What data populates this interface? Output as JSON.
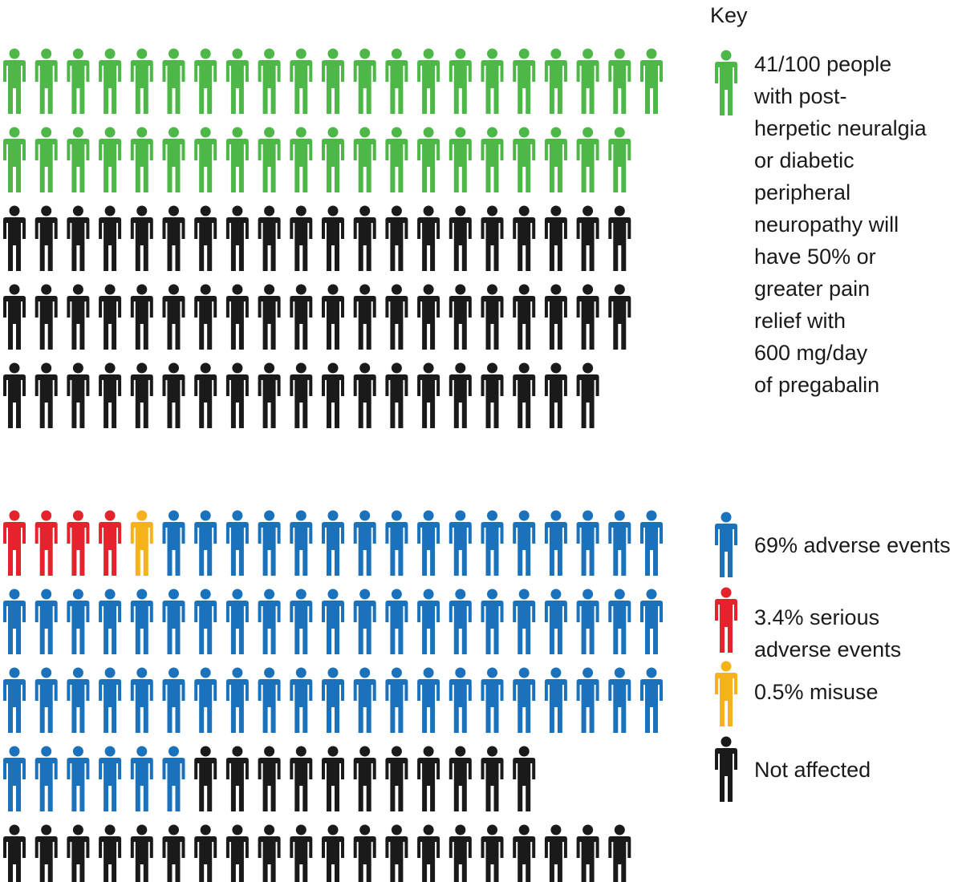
{
  "chart_data": [
    {
      "type": "pictograph",
      "total": 100,
      "per_icon": 1,
      "rows": [
        21,
        20,
        20,
        20,
        19
      ],
      "series": [
        {
          "name": "41/100 people with post-herpetic neuralgia or diabetic peripheral neuropathy will have 50% or greater pain relief with 600 mg/day of pregabalin",
          "count": 41,
          "color": "#4db848"
        },
        {
          "name": "",
          "count": 59,
          "color": "#1a1a1a"
        }
      ]
    },
    {
      "type": "pictograph",
      "total": 100,
      "per_icon": 1,
      "rows": [
        21,
        21,
        21,
        17,
        20
      ],
      "series": [
        {
          "name": "3.4% serious adverse events",
          "count": 4,
          "color": "#e4232c"
        },
        {
          "name": "0.5% misuse",
          "count": 1,
          "color": "#f5b21b"
        },
        {
          "name": "69% adverse events",
          "count": 64,
          "color": "#1b72bc"
        },
        {
          "name": "Not affected",
          "count": 31,
          "color": "#1a1a1a"
        }
      ]
    }
  ],
  "key": {
    "title": "Key",
    "items": [
      {
        "text": "41/100 people\nwith post-\nherpetic neuralgia\nor diabetic\nperipheral\nneuropathy will\nhave 50% or\ngreater pain\nrelief with\n600 mg/day\nof pregabalin",
        "color": "#4db848",
        "icon": "person-icon"
      },
      {
        "text": "69% adverse events",
        "color": "#1b72bc",
        "icon": "person-icon"
      },
      {
        "text": "3.4% serious adverse events",
        "color": "#e4232c",
        "icon": "person-icon"
      },
      {
        "text": "0.5% misuse",
        "color": "#f5b21b",
        "icon": "person-icon"
      },
      {
        "text": "Not affected",
        "color": "#1a1a1a",
        "icon": "person-icon"
      }
    ]
  }
}
